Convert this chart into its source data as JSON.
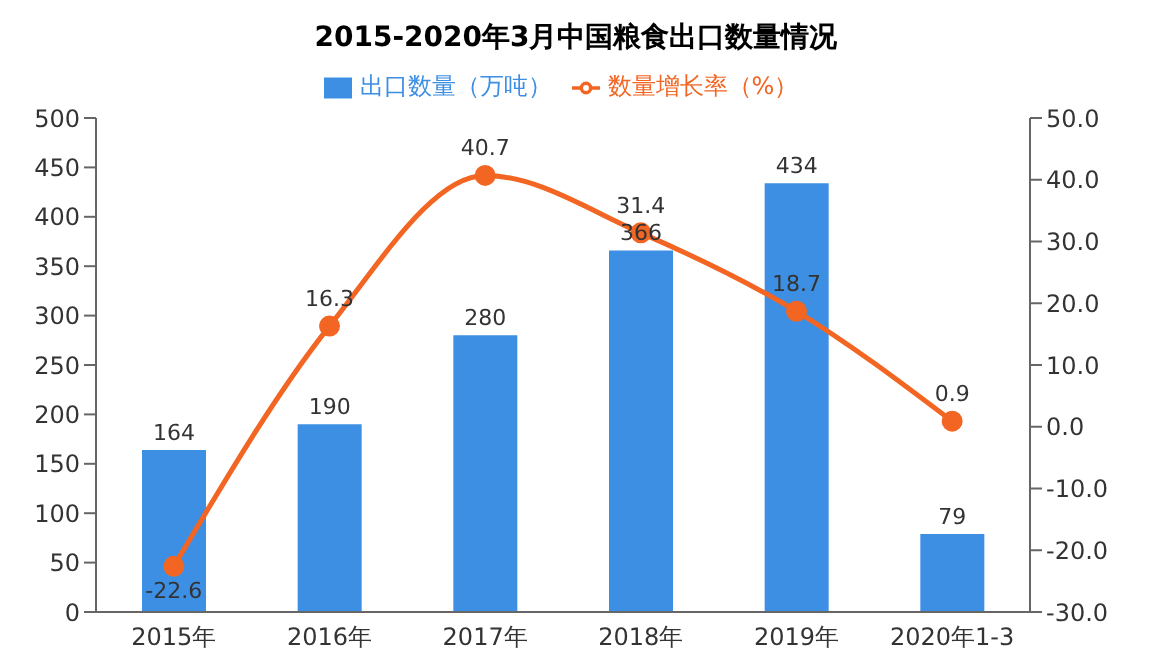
{
  "chart_data": {
    "type": "bar",
    "title": "2015-2020年3月中国粮食出口数量情况",
    "categories": [
      "2015年",
      "2016年",
      "2017年",
      "2018年",
      "2019年",
      "2020年1-3"
    ],
    "series": [
      {
        "name": "出口数量（万吨）",
        "color": "#3d8fe3",
        "values": [
          164,
          190,
          280,
          366,
          434,
          79
        ]
      },
      {
        "name": "数量增长率（%）",
        "type": "line",
        "axis": "y2",
        "color": "#f26522",
        "values": [
          -22.6,
          16.3,
          40.7,
          31.4,
          18.7,
          0.9
        ]
      }
    ],
    "ylim": [
      0,
      500
    ],
    "yticks": [
      0,
      50,
      100,
      150,
      200,
      250,
      300,
      350,
      400,
      450,
      500
    ],
    "y2lim": [
      -30,
      50
    ],
    "y2ticks": [
      {
        "value": -30,
        "label": "-30.0"
      },
      {
        "value": -20,
        "label": "-20.0"
      },
      {
        "value": -10,
        "label": "-10.0"
      },
      {
        "value": 0,
        "label": "0.0"
      },
      {
        "value": 10,
        "label": "10.0"
      },
      {
        "value": 20,
        "label": "20.0"
      },
      {
        "value": 30,
        "label": "30.0"
      },
      {
        "value": 40,
        "label": "40.0"
      },
      {
        "value": 50,
        "label": "50.0"
      }
    ],
    "data_labels": true,
    "legend": "top",
    "marker": "circle",
    "line_style": "solid"
  }
}
